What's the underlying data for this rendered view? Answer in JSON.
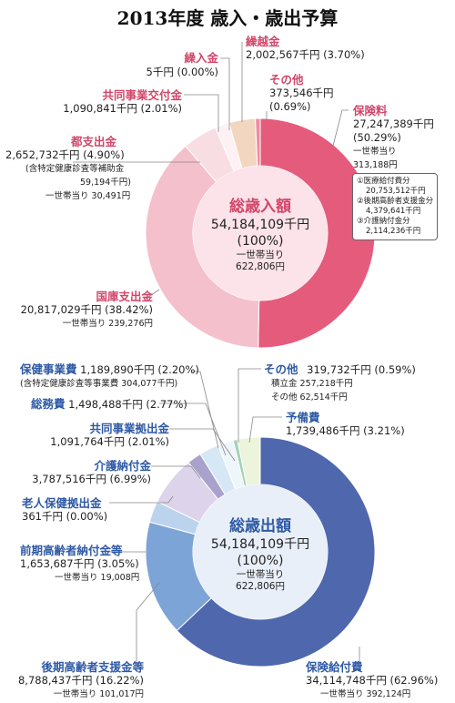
{
  "title": "2013年度 歳入・歳出予算",
  "revenue": {
    "center_title": "総歳入額",
    "center_total": "54,184,109千円",
    "center_pct": "(100%)",
    "center_per1": "一世帯当り",
    "center_per2": "622,806円",
    "labels": {
      "kuriire_name": "繰入金",
      "kuriire_val": "5千円 (0.00%)",
      "kurikoshi_name": "繰越金",
      "kurikoshi_val": "2,002,567千円 (3.70%)",
      "sonota_name": "その他",
      "sonota_val1": "373,546千円",
      "sonota_val2": "(0.69%)",
      "hoken_name": "保険料",
      "hoken_val1": "27,247,389千円",
      "hoken_val2": "(50.29%)",
      "hoken_per1": "一世帯当り",
      "hoken_per2": "313,188円",
      "kyodo_name": "共同事業交付金",
      "kyodo_val": "1,090,841千円 (2.01%)",
      "to_name": "都支出金",
      "to_val": "2,652,732千円 (4.90%)",
      "to_sub1": "(含特定健康診査等補助金",
      "to_sub2": "59,194千円)",
      "to_per": "一世帯当り 30,491円",
      "kokko_name": "国庫支出金",
      "kokko_val": "20,817,029千円 (38.42%)",
      "kokko_per": "一世帯当り 239,276円"
    },
    "box": [
      "①医療給付費分",
      "20,753,512千円",
      "②後期高齢者支援金分",
      "4,379,641千円",
      "③介護納付金分",
      "2,114,236千円"
    ]
  },
  "expenditure": {
    "center_title": "総歳出額",
    "center_total": "54,184,109千円",
    "center_pct": "(100%)",
    "center_per1": "一世帯当り",
    "center_per2": "622,806円",
    "labels": {
      "hokenjigyo_name": "保健事業費",
      "hokenjigyo_val": "1,189,890千円 (2.20%)",
      "hokenjigyo_sub": "(含特定健康診査等事業費 304,077千円)",
      "somu_name": "総務費",
      "somu_val": "1,498,488千円 (2.77%)",
      "kyodo_name": "共同事業拠出金",
      "kyodo_val": "1,091,764千円 (2.01%)",
      "kaigo_name": "介護納付金",
      "kaigo_val": "3,787,516千円 (6.99%)",
      "rojin_name": "老人保健拠出金",
      "rojin_val": "361千円 (0.00%)",
      "zenki_name": "前期高齢者納付金等",
      "zenki_val": "1,653,687千円 (3.05%)",
      "zenki_per": "一世帯当り 19,008円",
      "koki_name": "後期高齢者支援金等",
      "koki_val": "8,788,437千円 (16.22%)",
      "koki_per": "一世帯当り 101,017円",
      "sonota_name": "その他",
      "sonota_val": "319,732千円 (0.59%)",
      "sonota_sub1": "積立金 257,218千円",
      "sonota_sub2": "その他 62,514千円",
      "yobi_name": "予備費",
      "yobi_val": "1,739,486千円 (3.21%)",
      "hokenkyufu_name": "保険給付費",
      "hokenkyufu_val": "34,114,748千円 (62.96%)",
      "hokenkyufu_per": "一世帯当り 392,124円"
    }
  },
  "chart_data": [
    {
      "type": "pie",
      "title": "総歳入額",
      "categories": [
        "保険料",
        "国庫支出金",
        "都支出金",
        "共同事業交付金",
        "繰入金",
        "繰越金",
        "その他"
      ],
      "values": [
        27247389,
        20817029,
        2652732,
        1090841,
        5,
        2002567,
        373546
      ],
      "percent": [
        50.29,
        38.42,
        4.9,
        2.01,
        0.0,
        3.7,
        0.69
      ],
      "colors": [
        "#e55b7c",
        "#f4c0cc",
        "#f8dde3",
        "#fdf1f4",
        "#ffffff",
        "#f3d6bf",
        "#eb8fa4"
      ]
    },
    {
      "type": "pie",
      "title": "総歳出額",
      "categories": [
        "保険給付費",
        "後期高齢者支援金等",
        "前期高齢者納付金等",
        "老人保健拠出金",
        "介護納付金",
        "共同事業拠出金",
        "総務費",
        "保健事業費",
        "その他",
        "予備費"
      ],
      "values": [
        34114748,
        8788437,
        1653687,
        361,
        3787516,
        1091764,
        1498488,
        1189890,
        319732,
        1739486
      ],
      "percent": [
        62.96,
        16.22,
        3.05,
        0.0,
        6.99,
        2.01,
        2.77,
        2.2,
        0.59,
        3.21
      ],
      "colors": [
        "#4e67ad",
        "#7da4d6",
        "#bcd3ee",
        "#3a4a8f",
        "#ddd3ea",
        "#a9a2cc",
        "#d6e8f6",
        "#eef6fb",
        "#a3d2b6",
        "#ecf4dc"
      ]
    }
  ]
}
